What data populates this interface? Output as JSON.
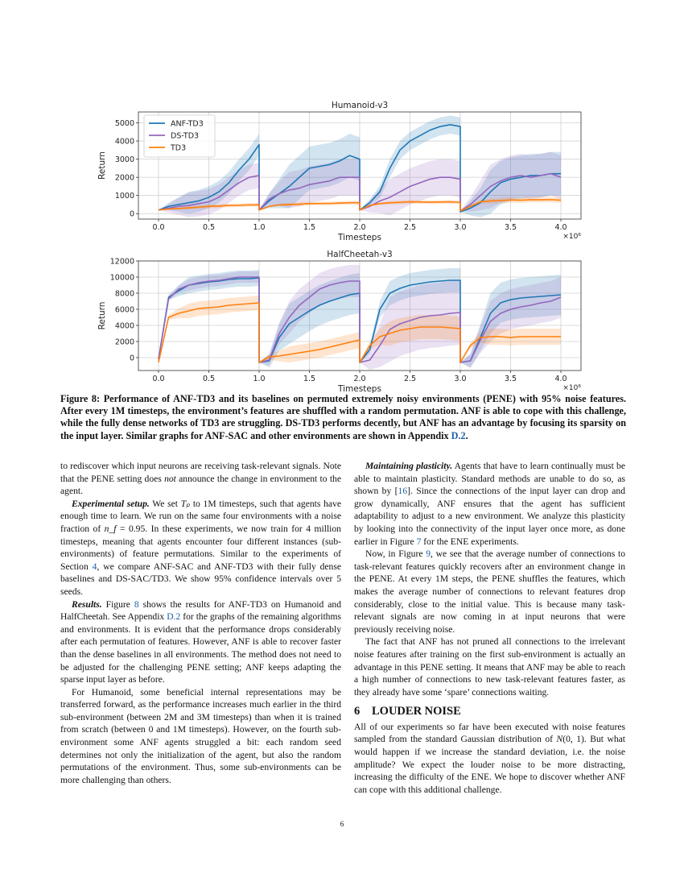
{
  "colors": {
    "anf": "#1f77b4",
    "ds": "#9467bd",
    "td3": "#ff7f0e",
    "link": "#1f5fa8"
  },
  "chart_data": [
    {
      "type": "line",
      "title": "Humanoid-v3",
      "xlabel": "Timesteps",
      "x_multiplier": "×10⁶",
      "ylabel": "Return",
      "xlim": [
        -0.2,
        4.2
      ],
      "ylim": [
        -300,
        5600
      ],
      "xticks": [
        "0.0",
        "0.5",
        "1.0",
        "1.5",
        "2.0",
        "2.5",
        "3.0",
        "3.5",
        "4.0"
      ],
      "yticks": [
        "0",
        "1000",
        "2000",
        "3000",
        "4000",
        "5000"
      ],
      "grid": true,
      "legend": "top-left",
      "segment_x": [
        0,
        0.1,
        0.2,
        0.3,
        0.4,
        0.5,
        0.6,
        0.7,
        0.8,
        0.9,
        1.0
      ],
      "series": [
        {
          "name": "ANF-TD3",
          "color": "#1f77b4",
          "segments": [
            [
              200,
              400,
              500,
              600,
              700,
              900,
              1200,
              1700,
              2400,
              3000,
              3800
            ],
            [
              200,
              700,
              1100,
              1500,
              2000,
              2500,
              2600,
              2700,
              2900,
              3200,
              3000
            ],
            [
              200,
              600,
              1200,
              2500,
              3500,
              4000,
              4300,
              4600,
              4800,
              4900,
              4800
            ],
            [
              100,
              300,
              600,
              1200,
              1700,
              1900,
              2000,
              2100,
              2100,
              2200,
              2200
            ]
          ],
          "ci_halfwidth": [
            600,
            1200,
            500,
            1200
          ]
        },
        {
          "name": "DS-TD3",
          "color": "#9467bd",
          "segments": [
            [
              200,
              300,
              400,
              450,
              550,
              650,
              900,
              1300,
              1700,
              2000,
              2100
            ],
            [
              200,
              800,
              1100,
              1300,
              1400,
              1600,
              1700,
              1800,
              2000,
              2000,
              2000
            ],
            [
              200,
              400,
              700,
              900,
              1200,
              1500,
              1700,
              1900,
              2000,
              2000,
              1900
            ],
            [
              150,
              500,
              1000,
              1500,
              1800,
              2000,
              2100,
              2000,
              2100,
              2200,
              2000
            ]
          ],
          "ci_halfwidth": [
            700,
            1000,
            1000,
            1200
          ]
        },
        {
          "name": "TD3",
          "color": "#ff7f0e",
          "segments": [
            [
              200,
              250,
              280,
              320,
              360,
              400,
              420,
              450,
              460,
              480,
              480
            ],
            [
              200,
              400,
              480,
              500,
              520,
              550,
              560,
              560,
              580,
              600,
              600
            ],
            [
              200,
              450,
              550,
              600,
              620,
              650,
              640,
              630,
              640,
              650,
              620
            ],
            [
              150,
              400,
              650,
              700,
              720,
              750,
              740,
              760,
              760,
              770,
              740
            ]
          ],
          "ci_halfwidth": [
            100,
            100,
            100,
            150
          ]
        }
      ]
    },
    {
      "type": "line",
      "title": "HalfCheetah-v3",
      "xlabel": "Timesteps",
      "x_multiplier": "×10⁶",
      "ylabel": "Return",
      "xlim": [
        -0.2,
        4.2
      ],
      "ylim": [
        -1600,
        12000
      ],
      "xticks": [
        "0.0",
        "0.5",
        "1.0",
        "1.5",
        "2.0",
        "2.5",
        "3.0",
        "3.5",
        "4.0"
      ],
      "yticks": [
        "0",
        "2000",
        "4000",
        "6000",
        "8000",
        "10000",
        "12000"
      ],
      "grid": true,
      "legend": "none",
      "segment_x": [
        0,
        0.1,
        0.2,
        0.3,
        0.4,
        0.5,
        0.6,
        0.7,
        0.8,
        0.9,
        1.0
      ],
      "series": [
        {
          "name": "ANF-TD3",
          "color": "#1f77b4",
          "segments": [
            [
              -200,
              7500,
              8300,
              9000,
              9200,
              9400,
              9500,
              9700,
              9800,
              9800,
              9900
            ],
            [
              -600,
              -400,
              2500,
              4200,
              5000,
              5800,
              6500,
              7000,
              7400,
              7800,
              8000
            ],
            [
              -600,
              1000,
              6000,
              8000,
              8600,
              9000,
              9200,
              9400,
              9500,
              9600,
              9600
            ],
            [
              -600,
              -400,
              2500,
              5500,
              6800,
              7200,
              7400,
              7500,
              7600,
              7700,
              7800
            ]
          ],
          "ci_halfwidth": [
            1000,
            2500,
            1500,
            2500
          ]
        },
        {
          "name": "DS-TD3",
          "color": "#9467bd",
          "segments": [
            [
              -200,
              7300,
              8500,
              9000,
              9300,
              9500,
              9600,
              9800,
              10000,
              10000,
              10000
            ],
            [
              -600,
              -300,
              3000,
              5000,
              6500,
              7500,
              8500,
              9000,
              9300,
              9500,
              9500
            ],
            [
              -600,
              -300,
              1500,
              3500,
              4200,
              4600,
              5000,
              5200,
              5300,
              5500,
              5600
            ],
            [
              -600,
              -400,
              2200,
              4500,
              5500,
              6000,
              6300,
              6500,
              6800,
              7000,
              7500
            ]
          ],
          "ci_halfwidth": [
            700,
            2000,
            4000,
            2500
          ]
        },
        {
          "name": "TD3",
          "color": "#ff7f0e",
          "segments": [
            [
              -600,
              5000,
              5500,
              5800,
              6100,
              6200,
              6300,
              6500,
              6600,
              6700,
              6800
            ],
            [
              -600,
              100,
              200,
              400,
              600,
              800,
              1000,
              1300,
              1600,
              1900,
              2200
            ],
            [
              -600,
              1500,
              2600,
              3000,
              3400,
              3600,
              3800,
              3800,
              3800,
              3700,
              3600
            ],
            [
              -600,
              1500,
              2500,
              2600,
              2600,
              2500,
              2600,
              2600,
              2600,
              2600,
              2600
            ]
          ],
          "ci_halfwidth": [
            900,
            1000,
            1500,
            1000
          ]
        }
      ]
    }
  ],
  "caption": [
    {
      "t": "Figure 8: Performance of ANF-TD3 and its baselines on permuted extremely noisy environments (PENE) with 95% noise features. After every 1M timesteps, the environment’s features are shuffled with a random permutation. ANF is able to cope with this challenge, while the fully dense networks of TD3 are struggling. DS-TD3 performs decently, but ANF has an advantage by focusing its sparsity on the input layer. Similar graphs for ANF-SAC and other environments are shown in Appendix "
    },
    {
      "t": "D.2",
      "c": "link"
    },
    {
      "t": "."
    }
  ],
  "left_column": [
    {
      "noind": true,
      "runs": [
        {
          "t": "to rediscover which input neurons are receiving task-relevant signals. Note that the PENE setting does "
        },
        {
          "t": "not",
          "c": "it"
        },
        {
          "t": " announce the change in environment to the agent."
        }
      ]
    },
    {
      "runs": [
        {
          "t": "Experimental setup.",
          "c": "bi"
        },
        {
          "t": " We set "
        },
        {
          "t": "Tₚ",
          "c": "it"
        },
        {
          "t": " to 1M timesteps, such that agents have enough time to learn. We run on the same four environments with a noise fraction of "
        },
        {
          "t": "n_f",
          "c": "it"
        },
        {
          "t": " = 0.95. In these experiments, we now train for 4 million timesteps, meaning that agents encounter four different instances (sub-environments) of feature permutations. Similar to the experiments of Section "
        },
        {
          "t": "4",
          "c": "link"
        },
        {
          "t": ", we compare ANF-SAC and ANF-TD3 with their fully dense baselines and DS-SAC/TD3. We show 95% confidence intervals over 5 seeds."
        }
      ]
    },
    {
      "runs": [
        {
          "t": "Results.",
          "c": "bi"
        },
        {
          "t": " Figure "
        },
        {
          "t": "8",
          "c": "link"
        },
        {
          "t": " shows the results for ANF-TD3 on Humanoid and HalfCheetah. See Appendix "
        },
        {
          "t": "D.2",
          "c": "link"
        },
        {
          "t": " for the graphs of the remaining algorithms and environments. It is evident that the performance drops considerably after each permutation of features. However, ANF is able to recover faster than the dense baselines in all environments. The method does not need to be adjusted for the challenging PENE setting; ANF keeps adapting the sparse input layer as before."
        }
      ]
    },
    {
      "runs": [
        {
          "t": "For Humanoid, some beneficial internal representations may be transferred forward, as the performance increases much earlier in the third sub-environment (between 2M and 3M timesteps) than when it is trained from scratch (between 0 and 1M timesteps). However, on the fourth sub-environment some ANF agents struggled a bit: each random seed determines not only the initialization of the agent, but also the random permutations of the environment. Thus, some sub-environments can be more challenging than others."
        }
      ]
    }
  ],
  "right_column": [
    {
      "runs": [
        {
          "t": "Maintaining plasticity.",
          "c": "bi"
        },
        {
          "t": " Agents that have to learn continually must be able to maintain plasticity. Standard methods are unable to do so, as shown by ["
        },
        {
          "t": "16",
          "c": "link"
        },
        {
          "t": "]. Since the connections of the input layer can drop and grow dynamically, ANF ensures that the agent has sufficient adaptability to adjust to a new environment. We analyze this plasticity by looking into the connectivity of the input layer once more, as done earlier in Figure "
        },
        {
          "t": "7",
          "c": "link"
        },
        {
          "t": " for the ENE experiments."
        }
      ]
    },
    {
      "runs": [
        {
          "t": "Now, in Figure "
        },
        {
          "t": "9",
          "c": "link"
        },
        {
          "t": ", we see that the average number of connections to task-relevant features quickly recovers after an environment change in the PENE. At every 1M steps, the PENE shuffles the features, which makes the average number of connections to relevant features drop considerably, close to the initial value. This is because many task-relevant signals are now coming in at input neurons that were previously receiving noise."
        }
      ]
    },
    {
      "runs": [
        {
          "t": "The fact that ANF has not pruned all connections to the irrelevant noise features after training on the first sub-environment is actually an advantage in this PENE setting. It means that ANF may be able to reach a high number of connections to new task-relevant features faster, as they already have some ‘spare’ connections waiting."
        }
      ]
    }
  ],
  "section": {
    "number": "6",
    "title": "LOUDER NOISE"
  },
  "section_body": [
    {
      "noind": true,
      "runs": [
        {
          "t": "All of our experiments so far have been executed with noise features sampled from the standard Gaussian distribution of "
        },
        {
          "t": "N",
          "c": "it"
        },
        {
          "t": "(0, 1). But what would happen if we increase the standard deviation, i.e. the noise amplitude? We expect the louder noise to be more distracting, increasing the difficulty of the ENE. We hope to discover whether ANF can cope with this additional challenge."
        }
      ]
    }
  ],
  "page_number": "6"
}
